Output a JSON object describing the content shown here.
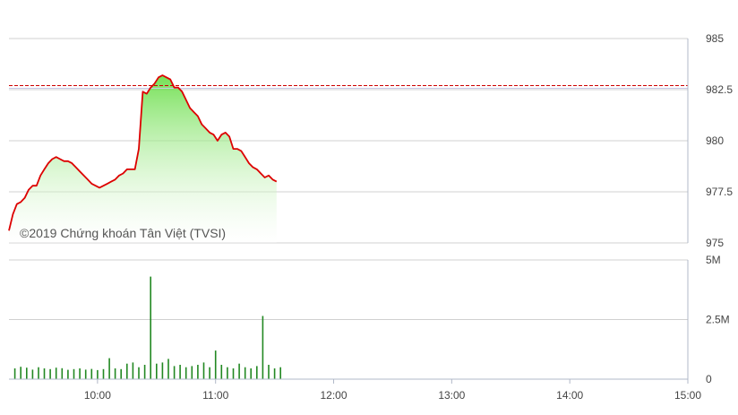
{
  "watermark": "©2019 Chứng khoán Tân Việt (TVSI)",
  "colors": {
    "line": "#dd0000",
    "area_top": "#66dd44",
    "reference": "#cc0000",
    "volume": "#228822",
    "grid": "#d0d0d0",
    "axis": "#b0b8c8"
  },
  "chart_data": [
    {
      "type": "area",
      "title": "",
      "xlabel": "",
      "ylabel": "",
      "ylim": [
        975,
        985
      ],
      "y_ticks": [
        "985",
        "982.5",
        "980",
        "977.5",
        "975"
      ],
      "y_tick_values": [
        985,
        982.5,
        980,
        977.5,
        975
      ],
      "reference_line": 982.7,
      "grid": true,
      "series": [
        {
          "x": [
            "09:15",
            "09:17",
            "09:19",
            "09:21",
            "09:23",
            "09:25",
            "09:27",
            "09:29",
            "09:31",
            "09:33",
            "09:35",
            "09:37",
            "09:39",
            "09:41",
            "09:43",
            "09:45",
            "09:47",
            "09:49",
            "09:51",
            "09:53",
            "09:55",
            "09:57",
            "09:59",
            "10:01",
            "10:03",
            "10:05",
            "10:07",
            "10:09",
            "10:11",
            "10:13",
            "10:15",
            "10:17",
            "10:19",
            "10:21",
            "10:23",
            "10:25",
            "10:27",
            "10:29",
            "10:31",
            "10:33",
            "10:35",
            "10:37",
            "10:39",
            "10:41",
            "10:43",
            "10:45",
            "10:47",
            "10:49",
            "10:51",
            "10:53",
            "10:55",
            "10:57",
            "10:59",
            "11:01",
            "11:03",
            "11:05",
            "11:07",
            "11:09",
            "11:11",
            "11:13",
            "11:15",
            "11:17",
            "11:19",
            "11:21",
            "11:23",
            "11:25",
            "11:27",
            "11:29",
            "11:31"
          ],
          "values": [
            975.6,
            976.4,
            976.9,
            977.0,
            977.2,
            977.6,
            977.8,
            977.8,
            978.3,
            978.6,
            978.9,
            979.1,
            979.2,
            979.1,
            979.0,
            979.0,
            978.9,
            978.7,
            978.5,
            978.3,
            978.1,
            977.9,
            977.8,
            977.7,
            977.8,
            977.9,
            978.0,
            978.1,
            978.3,
            978.4,
            978.6,
            978.6,
            978.6,
            979.6,
            982.4,
            982.3,
            982.6,
            982.8,
            983.1,
            983.2,
            983.1,
            983.0,
            982.6,
            982.6,
            982.4,
            982.0,
            981.6,
            981.4,
            981.2,
            980.8,
            980.6,
            980.4,
            980.3,
            980.0,
            980.3,
            980.4,
            980.2,
            979.6,
            979.6,
            979.5,
            979.2,
            978.9,
            978.7,
            978.6,
            978.4,
            978.2,
            978.3,
            978.1,
            978.0
          ]
        }
      ]
    },
    {
      "type": "bar",
      "title": "",
      "xlabel": "",
      "ylabel": "",
      "ylim": [
        0,
        5000000
      ],
      "y_ticks": [
        "5M",
        "2.5M",
        "0"
      ],
      "y_tick_values": [
        5000000,
        2500000,
        0
      ],
      "x_ticks": [
        "10:00",
        "11:00",
        "12:00",
        "13:00",
        "14:00",
        "15:00"
      ],
      "x_tick_values": [
        "10:00",
        "11:00",
        "12:00",
        "13:00",
        "14:00",
        "15:00"
      ],
      "x_range": [
        "09:15",
        "15:00"
      ],
      "grid": true,
      "series": [
        {
          "x": [
            "09:18",
            "09:21",
            "09:24",
            "09:27",
            "09:30",
            "09:33",
            "09:36",
            "09:39",
            "09:42",
            "09:45",
            "09:48",
            "09:51",
            "09:54",
            "09:57",
            "10:00",
            "10:03",
            "10:06",
            "10:09",
            "10:12",
            "10:15",
            "10:18",
            "10:21",
            "10:24",
            "10:27",
            "10:30",
            "10:33",
            "10:36",
            "10:39",
            "10:42",
            "10:45",
            "10:48",
            "10:51",
            "10:54",
            "10:57",
            "11:00",
            "11:03",
            "11:06",
            "11:09",
            "11:12",
            "11:15",
            "11:18",
            "11:21",
            "11:24",
            "11:27",
            "11:30",
            "11:33"
          ],
          "values": [
            450000,
            520000,
            480000,
            400000,
            500000,
            450000,
            420000,
            480000,
            460000,
            390000,
            420000,
            450000,
            400000,
            430000,
            380000,
            420000,
            880000,
            450000,
            420000,
            650000,
            700000,
            500000,
            600000,
            4300000,
            650000,
            700000,
            850000,
            550000,
            600000,
            500000,
            550000,
            600000,
            700000,
            500000,
            1200000,
            600000,
            500000,
            450000,
            650000,
            500000,
            450000,
            550000,
            2650000,
            600000,
            450000,
            500000
          ]
        }
      ]
    }
  ]
}
